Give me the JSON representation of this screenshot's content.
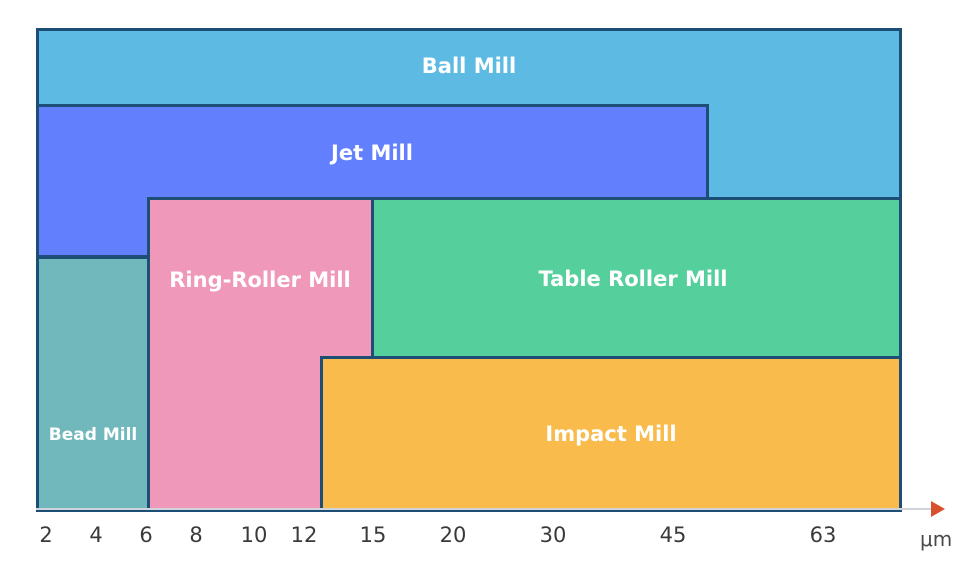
{
  "colors": {
    "ball_mill": "#5dbbe3",
    "jet_mill": "#627ffd",
    "bead_mill": "#71b8bd",
    "ring_roller_mill": "#ef98b9",
    "table_roller_mill": "#55cf9c",
    "impact_mill": "#f8bb4c",
    "border": "#1d4e75",
    "axis_arrow": "#d9502c"
  },
  "blocks": [
    {
      "label": "Ball Mill",
      "color_key": "ball_mill"
    },
    {
      "label": "Jet Mill",
      "color_key": "jet_mill"
    },
    {
      "label": "Bead Mill",
      "color_key": "bead_mill"
    },
    {
      "label": "Ring-Roller Mill",
      "color_key": "ring_roller_mill"
    },
    {
      "label": "Table Roller Mill",
      "color_key": "table_roller_mill"
    },
    {
      "label": "Impact Mill",
      "color_key": "impact_mill"
    }
  ],
  "axis": {
    "ticks": [
      "2",
      "4",
      "6",
      "8",
      "10",
      "12",
      "15",
      "20",
      "30",
      "45",
      "63"
    ],
    "unit": "μm"
  }
}
